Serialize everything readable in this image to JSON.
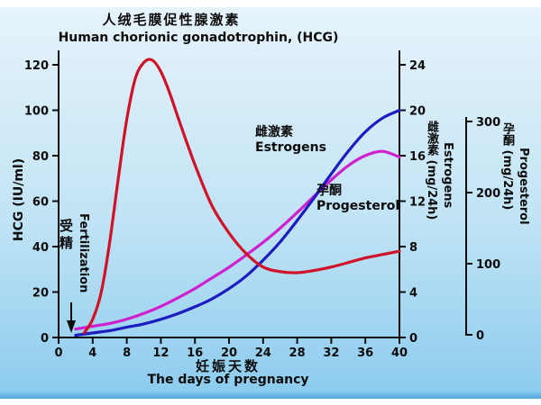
{
  "window": {
    "bg_top": "#e6f3fb",
    "bg_bottom": "#4fa7dd"
  },
  "title": {
    "zh": "人绒毛膜促性腺激素",
    "en": "Human chorionic gonadotrophin, (HCG)"
  },
  "axis_labels": {
    "hcg": "HCG (IU/ml)",
    "x_zh": "妊娠天数",
    "x_en": "The days of pregnancy",
    "estrogens_zh": "雌激素 (mg/24h)",
    "estrogens_en": "Estrogens",
    "progesterol_zh": "孕酮 (mg/24h)",
    "progesterol_en": "Progesterol"
  },
  "annotations": {
    "fertilization_zh": "受精",
    "fertilization_en": "Fertilization",
    "estrogens_curve_zh": "雌激素",
    "estrogens_curve_en": "Estrogens",
    "progesterol_curve_zh": "孕酮",
    "progesterol_curve_en": "Progesterol"
  },
  "chart_data": {
    "type": "line",
    "title_zh": "人绒毛膜促性腺激素",
    "title_en": "Human chorionic gonadotrophin, (HCG)",
    "xlabel_zh": "妊娠天数",
    "xlabel_en": "The days of pregnancy",
    "xlim": [
      0,
      40
    ],
    "x_ticks": [
      0,
      4,
      8,
      12,
      16,
      20,
      24,
      28,
      32,
      36,
      40
    ],
    "legend": "labels drawn beside curves",
    "grid": false,
    "axes": {
      "left": {
        "label": "HCG (IU/ml)",
        "ticks": [
          0,
          20,
          40,
          60,
          80,
          100,
          120
        ],
        "lim": [
          0,
          120
        ]
      },
      "right1": {
        "label": "雌激素 Estrogens (mg/24h)",
        "ticks": [
          0,
          4,
          8,
          12,
          16,
          20,
          24
        ],
        "lim": [
          0,
          24
        ]
      },
      "right2": {
        "label": "孕酮 Progesterol (mg/24h)",
        "ticks": [
          0,
          100,
          200,
          300
        ],
        "lim": [
          0,
          300
        ]
      }
    },
    "annotation_arrow": {
      "label": "受精 Fertilization",
      "x": 1.5
    },
    "series": [
      {
        "name": "HCG",
        "axis": "left",
        "unit": "IU/ml",
        "color": "#d01228",
        "points": [
          [
            3,
            2
          ],
          [
            4,
            8
          ],
          [
            5,
            20
          ],
          [
            6,
            42
          ],
          [
            7,
            70
          ],
          [
            8,
            96
          ],
          [
            9,
            114
          ],
          [
            10,
            121
          ],
          [
            11,
            122
          ],
          [
            12,
            117
          ],
          [
            13,
            108
          ],
          [
            14,
            97
          ],
          [
            16,
            76
          ],
          [
            18,
            58
          ],
          [
            20,
            46
          ],
          [
            22,
            37
          ],
          [
            24,
            31
          ],
          [
            26,
            29
          ],
          [
            28,
            28.5
          ],
          [
            30,
            29.5
          ],
          [
            32,
            31
          ],
          [
            34,
            33
          ],
          [
            36,
            35
          ],
          [
            38,
            36.5
          ],
          [
            40,
            38
          ]
        ]
      },
      {
        "name": "Estrogens",
        "axis": "right1",
        "unit": "mg/24h",
        "color": "#1c1cc0",
        "points": [
          [
            2,
            0.2
          ],
          [
            4,
            0.4
          ],
          [
            6,
            0.6
          ],
          [
            8,
            0.9
          ],
          [
            10,
            1.2
          ],
          [
            12,
            1.6
          ],
          [
            14,
            2.1
          ],
          [
            16,
            2.7
          ],
          [
            18,
            3.4
          ],
          [
            20,
            4.3
          ],
          [
            22,
            5.4
          ],
          [
            24,
            6.8
          ],
          [
            26,
            8.4
          ],
          [
            28,
            10.3
          ],
          [
            30,
            12.3
          ],
          [
            32,
            14.4
          ],
          [
            34,
            16.4
          ],
          [
            36,
            18.1
          ],
          [
            38,
            19.3
          ],
          [
            40,
            20
          ]
        ]
      },
      {
        "name": "Progesterol",
        "axis": "right2",
        "unit": "mg/24h",
        "color": "#cf1fcf",
        "points": [
          [
            2,
            8
          ],
          [
            4,
            12
          ],
          [
            6,
            16
          ],
          [
            8,
            22
          ],
          [
            10,
            30
          ],
          [
            12,
            40
          ],
          [
            14,
            52
          ],
          [
            16,
            65
          ],
          [
            18,
            80
          ],
          [
            20,
            95
          ],
          [
            22,
            112
          ],
          [
            24,
            130
          ],
          [
            26,
            150
          ],
          [
            28,
            172
          ],
          [
            30,
            195
          ],
          [
            32,
            218
          ],
          [
            34,
            238
          ],
          [
            36,
            252
          ],
          [
            38,
            258
          ],
          [
            40,
            250
          ]
        ]
      }
    ]
  }
}
